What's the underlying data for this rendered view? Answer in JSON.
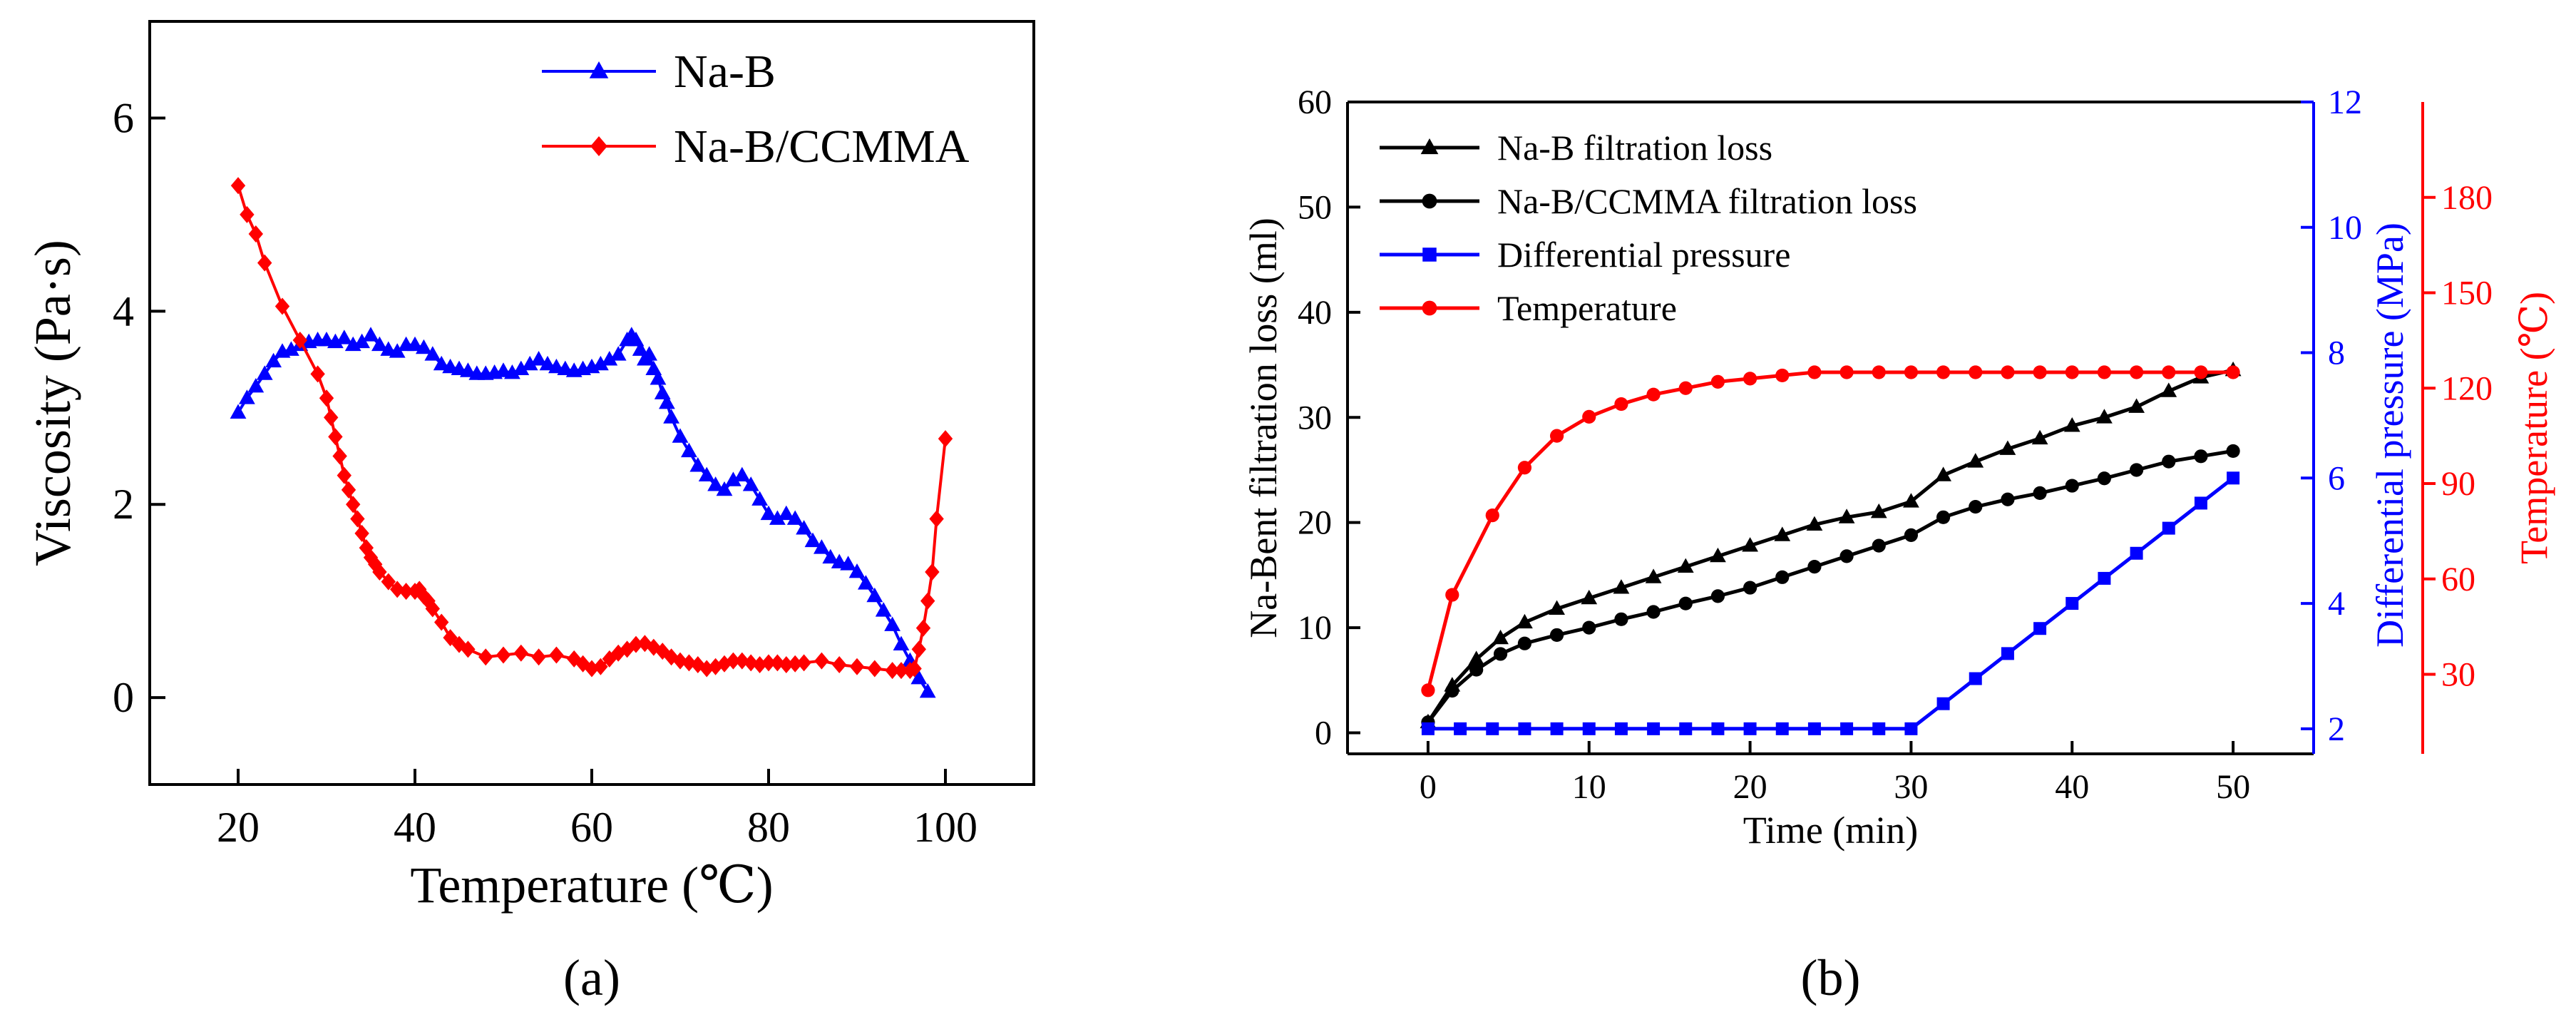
{
  "chart_data": [
    {
      "type": "line",
      "panel_label": "(a)",
      "xlabel": "Temperature (℃)",
      "ylabel": "Viscosity (Pa·s)",
      "xlim": [
        10,
        110
      ],
      "ylim": [
        -0.9,
        7.0
      ],
      "x_ticks": [
        "20",
        "40",
        "60",
        "80",
        "100"
      ],
      "y_ticks": [
        "0",
        "2",
        "4",
        "6"
      ],
      "legend_position": "top-right",
      "series": [
        {
          "name": "Na-B",
          "color": "#0000ff",
          "marker": "triangle",
          "x": [
            20,
            21,
            22,
            23,
            24,
            25,
            26,
            27,
            28,
            29,
            30,
            31,
            32,
            33,
            34,
            35,
            36,
            37,
            38,
            39,
            40,
            41,
            42,
            43,
            44,
            45,
            46,
            47,
            48,
            49,
            50,
            51,
            52,
            53,
            54,
            55,
            56,
            57,
            58,
            59,
            60,
            61,
            62,
            63,
            64,
            64.5,
            65,
            65.5,
            66,
            66.5,
            67,
            67.5,
            68,
            68.5,
            69,
            70,
            71,
            72,
            73,
            74,
            75,
            76,
            77,
            78,
            79,
            80,
            81,
            82,
            83,
            84,
            85,
            86,
            87,
            88,
            89,
            90,
            91,
            92,
            93,
            94,
            95,
            96,
            97,
            98
          ],
          "values": [
            2.95,
            3.1,
            3.22,
            3.35,
            3.48,
            3.58,
            3.6,
            3.65,
            3.68,
            3.7,
            3.7,
            3.68,
            3.72,
            3.65,
            3.68,
            3.75,
            3.65,
            3.6,
            3.58,
            3.65,
            3.65,
            3.62,
            3.55,
            3.45,
            3.42,
            3.4,
            3.38,
            3.35,
            3.35,
            3.36,
            3.38,
            3.36,
            3.4,
            3.45,
            3.5,
            3.45,
            3.42,
            3.4,
            3.38,
            3.4,
            3.42,
            3.45,
            3.5,
            3.55,
            3.7,
            3.75,
            3.7,
            3.6,
            3.5,
            3.55,
            3.4,
            3.3,
            3.15,
            3.05,
            2.9,
            2.7,
            2.55,
            2.4,
            2.3,
            2.2,
            2.15,
            2.25,
            2.3,
            2.2,
            2.05,
            1.9,
            1.85,
            1.9,
            1.85,
            1.75,
            1.62,
            1.55,
            1.45,
            1.4,
            1.38,
            1.3,
            1.18,
            1.05,
            0.9,
            0.75,
            0.55,
            0.38,
            0.2,
            0.06
          ]
        },
        {
          "name": "Na-B/CCMMA",
          "color": "#ff0000",
          "marker": "diamond",
          "x": [
            20,
            21,
            22,
            23,
            25,
            27,
            29,
            30,
            30.5,
            31,
            31.5,
            32,
            32.5,
            33,
            33.5,
            34,
            34.5,
            35,
            35.5,
            36,
            37,
            38,
            39,
            40,
            40.5,
            41,
            41.5,
            42,
            43,
            44,
            45,
            46,
            48,
            50,
            52,
            54,
            56,
            58,
            59,
            60,
            61,
            62,
            63,
            64,
            65,
            66,
            67,
            68,
            69,
            70,
            71,
            72,
            73,
            74,
            75,
            76,
            77,
            78,
            79,
            80,
            81,
            82,
            83,
            84,
            86,
            88,
            90,
            92,
            94,
            95,
            96,
            96.5,
            97,
            97.5,
            98,
            98.5,
            99,
            100
          ],
          "values": [
            5.3,
            5.0,
            4.8,
            4.5,
            4.05,
            3.7,
            3.35,
            3.1,
            2.9,
            2.7,
            2.5,
            2.3,
            2.15,
            2.0,
            1.85,
            1.7,
            1.55,
            1.45,
            1.38,
            1.3,
            1.2,
            1.12,
            1.1,
            1.1,
            1.12,
            1.05,
            1.0,
            0.92,
            0.78,
            0.62,
            0.55,
            0.5,
            0.42,
            0.44,
            0.46,
            0.42,
            0.44,
            0.4,
            0.35,
            0.3,
            0.32,
            0.4,
            0.46,
            0.5,
            0.55,
            0.56,
            0.52,
            0.48,
            0.42,
            0.38,
            0.36,
            0.34,
            0.3,
            0.32,
            0.35,
            0.38,
            0.38,
            0.36,
            0.34,
            0.36,
            0.36,
            0.34,
            0.35,
            0.36,
            0.38,
            0.34,
            0.32,
            0.3,
            0.28,
            0.28,
            0.28,
            0.3,
            0.5,
            0.72,
            1.0,
            1.3,
            1.85,
            2.68
          ]
        }
      ]
    },
    {
      "type": "line",
      "panel_label": "(b)",
      "xlabel": "Time (min)",
      "ylabel": "Na-Bent filtration loss (ml)",
      "xlim": [
        -5,
        55
      ],
      "ylim": [
        -2,
        60
      ],
      "x_ticks": [
        "0",
        "10",
        "20",
        "30",
        "40",
        "50"
      ],
      "y_ticks": [
        "0",
        "10",
        "20",
        "30",
        "40",
        "50",
        "60"
      ],
      "right_axes": [
        {
          "label": "Differential pressure (MPa)",
          "color": "#0000ff",
          "lim": [
            1.6,
            12
          ],
          "ticks": [
            "2",
            "4",
            "6",
            "8",
            "10",
            "12"
          ]
        },
        {
          "label": "Temperature (℃)",
          "color": "#ff0000",
          "lim": [
            5,
            210
          ],
          "ticks": [
            "30",
            "60",
            "90",
            "120",
            "150",
            "180"
          ]
        }
      ],
      "legend_position": "top-left",
      "series": [
        {
          "name": "Na-B filtration loss",
          "color": "#000000",
          "marker": "triangle",
          "axis": "left",
          "x": [
            0,
            1.5,
            3,
            4.5,
            6,
            8,
            10,
            12,
            14,
            16,
            18,
            20,
            22,
            24,
            26,
            28,
            30,
            32,
            34,
            36,
            38,
            40,
            42,
            44,
            46,
            48,
            50
          ],
          "values": [
            1,
            4.5,
            7,
            9,
            10.5,
            11.8,
            12.8,
            13.8,
            14.8,
            15.8,
            16.8,
            17.8,
            18.8,
            19.8,
            20.5,
            21,
            22,
            24.5,
            25.8,
            27,
            28,
            29.2,
            30,
            31,
            32.5,
            33.8,
            34.5
          ]
        },
        {
          "name": "Na-B/CCMMA filtration loss",
          "color": "#000000",
          "marker": "circle",
          "axis": "left",
          "x": [
            0,
            1.5,
            3,
            4.5,
            6,
            8,
            10,
            12,
            14,
            16,
            18,
            20,
            22,
            24,
            26,
            28,
            30,
            32,
            34,
            36,
            38,
            40,
            42,
            44,
            46,
            48,
            50
          ],
          "values": [
            1,
            4,
            6,
            7.5,
            8.5,
            9.3,
            10,
            10.8,
            11.5,
            12.3,
            13,
            13.8,
            14.8,
            15.8,
            16.8,
            17.8,
            18.8,
            20.5,
            21.5,
            22.2,
            22.8,
            23.5,
            24.2,
            25,
            25.8,
            26.3,
            26.8
          ]
        },
        {
          "name": "Differential pressure",
          "color": "#0000ff",
          "marker": "square",
          "axis": "right-1",
          "x": [
            0,
            2,
            4,
            6,
            8,
            10,
            12,
            14,
            16,
            18,
            20,
            22,
            24,
            26,
            28,
            30,
            32,
            34,
            36,
            38,
            40,
            42,
            44,
            46,
            48,
            50
          ],
          "values": [
            2,
            2,
            2,
            2,
            2,
            2,
            2,
            2,
            2,
            2,
            2,
            2,
            2,
            2,
            2,
            2,
            2.4,
            2.8,
            3.2,
            3.6,
            4.0,
            4.4,
            4.8,
            5.2,
            5.6,
            6.0
          ]
        },
        {
          "name": "Temperature",
          "color": "#ff0000",
          "marker": "circle",
          "axis": "right-2",
          "x": [
            0,
            1.5,
            4,
            6,
            8,
            10,
            12,
            14,
            16,
            18,
            20,
            22,
            24,
            26,
            28,
            30,
            32,
            34,
            36,
            38,
            40,
            42,
            44,
            46,
            48,
            50
          ],
          "values": [
            25,
            55,
            80,
            95,
            105,
            111,
            115,
            118,
            120,
            122,
            123,
            124,
            125,
            125,
            125,
            125,
            125,
            125,
            125,
            125,
            125,
            125,
            125,
            125,
            125,
            125
          ]
        }
      ]
    }
  ]
}
